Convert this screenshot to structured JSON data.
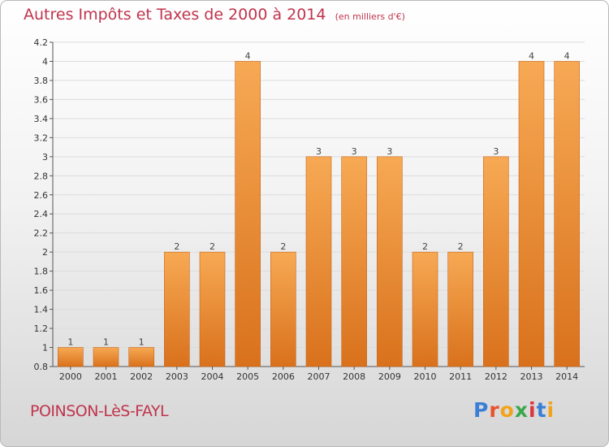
{
  "chart_data": {
    "type": "bar",
    "title": "Autres Impôts et Taxes de 2000 à 2014",
    "subtitle": "(en milliers d'€)",
    "categories": [
      "2000",
      "2001",
      "2002",
      "2003",
      "2004",
      "2005",
      "2006",
      "2007",
      "2008",
      "2009",
      "2010",
      "2011",
      "2012",
      "2013",
      "2014"
    ],
    "values": [
      1,
      1,
      1,
      2,
      2,
      4,
      2,
      3,
      3,
      3,
      2,
      2,
      3,
      4,
      4
    ],
    "data_labels": [
      "1",
      "1",
      "1",
      "2",
      "2",
      "4",
      "2",
      "3",
      "3",
      "3",
      "2",
      "2",
      "3",
      "4",
      "4"
    ],
    "ylim": [
      0.8,
      4.2
    ],
    "yticks": [
      0.8,
      1,
      1.2,
      1.4,
      1.6,
      1.8,
      2,
      2.2,
      2.4,
      2.6,
      2.8,
      3,
      3.2,
      3.4,
      3.6,
      3.8,
      4,
      4.2
    ],
    "ytick_labels": [
      "0.8",
      "1",
      "1.2",
      "1.4",
      "1.6",
      "1.8",
      "2",
      "2.2",
      "2.4",
      "2.6",
      "2.8",
      "3",
      "3.2",
      "3.4",
      "3.6",
      "3.8",
      "4",
      "4.2"
    ],
    "xlabel": "",
    "ylabel": "",
    "grid": true,
    "bar_color": "#f0922e",
    "bar_color_light": "#f7a954",
    "bar_color_dark": "#d9711c"
  },
  "footer": {
    "commune": "POINSON-LèS-FAYL"
  },
  "logo": {
    "letters": [
      "P",
      "r",
      "o",
      "x",
      "i",
      "t",
      "i"
    ],
    "colors": [
      "#3a7fd5",
      "#e8532b",
      "#f2a31b",
      "#3aa84a",
      "#d9363e",
      "#3a7fd5",
      "#f2a31b"
    ]
  }
}
